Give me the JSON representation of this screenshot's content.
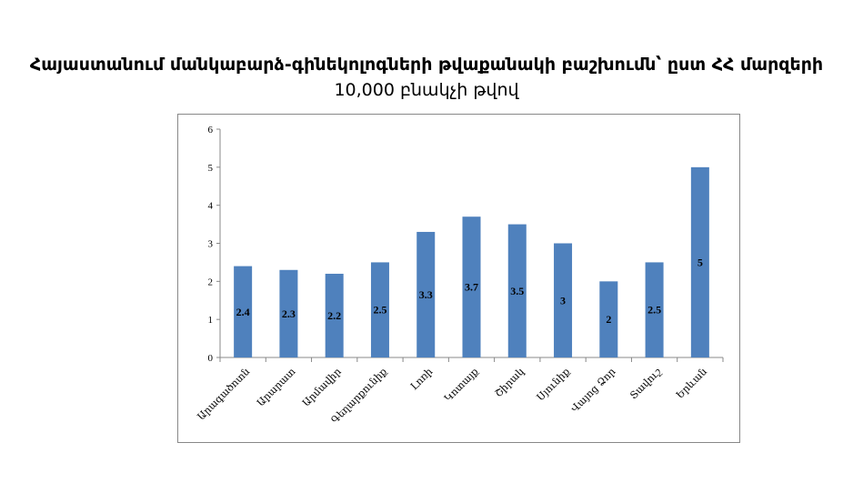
{
  "chart_data": {
    "type": "bar",
    "title": "Հայաստանում մանկաբարձ-գինեկոլոգների թվաքանակի բաշխումն՝ ըստ ՀՀ մարզերի",
    "subtitle": "10,000 բնակչի թվով",
    "categories": [
      "Արագածոտն",
      "Արարատ",
      "Արմավիր",
      "Գեղարքունիք",
      "Լոռի",
      "Կոտայք",
      "Շիրակ",
      "Սյունիք",
      "Վայոց Ձոր",
      "Տավուշ",
      "Երևան"
    ],
    "values": [
      2.4,
      2.3,
      2.2,
      2.5,
      3.3,
      3.7,
      3.5,
      3,
      2,
      2.5,
      5
    ],
    "data_labels": [
      "2.4",
      "2.3",
      "2.2",
      "2.5",
      "3.3",
      "3.7",
      "3.5",
      "3",
      "2",
      "2.5",
      "5"
    ],
    "xlabel": "",
    "ylabel": "",
    "ylim": [
      0,
      6
    ],
    "yticks": [
      "0",
      "1",
      "2",
      "3",
      "4",
      "5",
      "6"
    ],
    "grid": false,
    "bar_color": "#4f81bd"
  }
}
